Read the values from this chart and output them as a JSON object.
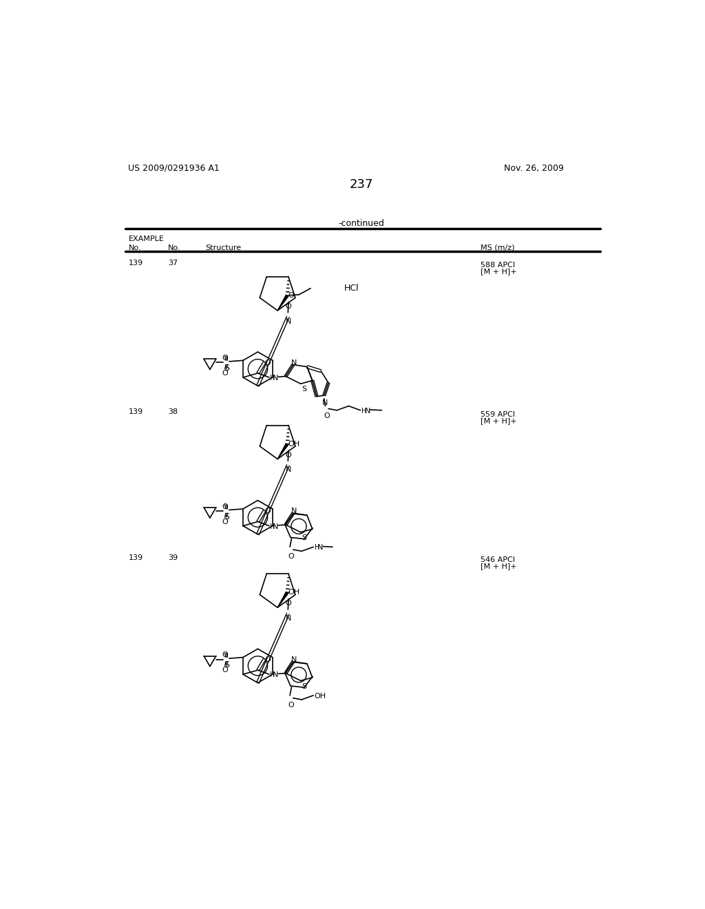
{
  "page_number": "237",
  "patent_number": "US 2009/0291936 A1",
  "patent_date": "Nov. 26, 2009",
  "continued_text": "-continued",
  "row1": {
    "ex_no": "139",
    "comp_no": "37",
    "ms1": "588 APCI",
    "ms2": "[M + H]+"
  },
  "row2": {
    "ex_no": "139",
    "comp_no": "38",
    "ms1": "559 APCI",
    "ms2": "[M + H]+"
  },
  "row3": {
    "ex_no": "139",
    "comp_no": "39",
    "ms1": "546 APCI",
    "ms2": "[M + H]+"
  }
}
